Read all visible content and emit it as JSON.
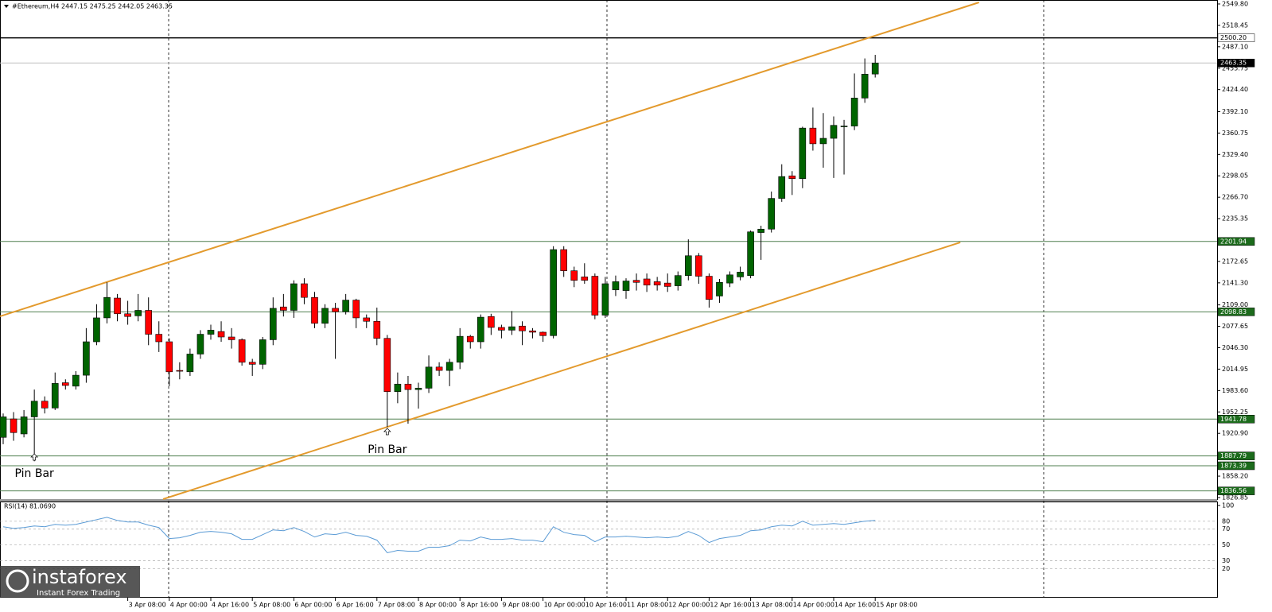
{
  "chart_data": [
    {
      "type": "candlestick",
      "title": "#Ethereum,H4  2447.15 2475.25 2442.05 2463.35",
      "up_color": "#006400",
      "down_color": "#ff0000",
      "open": [
        1915,
        1942,
        1920,
        1945,
        1968,
        1958,
        1995,
        1990,
        2006,
        2055,
        2090,
        2119,
        2096,
        2093,
        2101,
        2066,
        2055,
        2013,
        2011,
        2037,
        2066,
        2070,
        2062,
        2058,
        2025,
        2022,
        2058,
        2106,
        2101,
        2140,
        2120,
        2082,
        2104,
        2099,
        2116,
        2090,
        2085,
        2060,
        1982,
        1993,
        1985,
        1987,
        2018,
        2013,
        2025,
        2063,
        2055,
        2092,
        2076,
        2072,
        2078,
        2071,
        2069,
        2064,
        2190,
        2159,
        2150,
        2151,
        2094,
        2131,
        2130,
        2145,
        2147,
        2143,
        2141,
        2137,
        2152,
        2181,
        2151,
        2122,
        2141,
        2150,
        2152,
        2215,
        2220,
        2265,
        2298,
        2294,
        2368,
        2345,
        2353,
        2370,
        2371,
        2412,
        2447.15
      ],
      "high": [
        1950,
        1952,
        1955,
        1985,
        1975,
        2010,
        2000,
        2012,
        2075,
        2110,
        2142,
        2125,
        2115,
        2125,
        2120,
        2085,
        2060,
        2025,
        2045,
        2072,
        2080,
        2085,
        2075,
        2060,
        2030,
        2062,
        2120,
        2125,
        2145,
        2148,
        2128,
        2110,
        2112,
        2125,
        2118,
        2095,
        2105,
        2065,
        2010,
        2005,
        1995,
        2035,
        2025,
        2030,
        2075,
        2065,
        2095,
        2096,
        2080,
        2100,
        2085,
        2075,
        2070,
        2195,
        2195,
        2165,
        2170,
        2155,
        2150,
        2152,
        2148,
        2155,
        2155,
        2150,
        2155,
        2158,
        2205,
        2185,
        2155,
        2147,
        2158,
        2165,
        2218,
        2225,
        2275,
        2315,
        2305,
        2370,
        2398,
        2390,
        2385,
        2380,
        2448,
        2470,
        2475.25
      ],
      "low": [
        1905,
        1910,
        1915,
        1880,
        1950,
        1955,
        1985,
        1985,
        1995,
        2050,
        2082,
        2085,
        2080,
        2085,
        2050,
        2040,
        1990,
        2000,
        2005,
        2030,
        2058,
        2055,
        2045,
        2020,
        2005,
        2015,
        2050,
        2092,
        2090,
        2110,
        2075,
        2075,
        2030,
        2095,
        2075,
        2075,
        2050,
        1930,
        1965,
        1935,
        1957,
        1980,
        2005,
        1990,
        2015,
        2045,
        2045,
        2065,
        2060,
        2065,
        2050,
        2060,
        2055,
        2060,
        2150,
        2135,
        2140,
        2088,
        2090,
        2122,
        2118,
        2130,
        2128,
        2130,
        2128,
        2130,
        2145,
        2140,
        2105,
        2112,
        2135,
        2145,
        2148,
        2175,
        2215,
        2260,
        2270,
        2280,
        2335,
        2310,
        2295,
        2300,
        2365,
        2405,
        2442.05
      ],
      "close": [
        1945,
        1922,
        1945,
        1968,
        1958,
        1994,
        1991,
        2006,
        2055,
        2090,
        2120,
        2096,
        2092,
        2101,
        2066,
        2055,
        2011,
        2012,
        2037,
        2066,
        2072,
        2062,
        2058,
        2025,
        2022,
        2058,
        2104,
        2101,
        2140,
        2120,
        2082,
        2104,
        2099,
        2116,
        2090,
        2085,
        2060,
        1982,
        1993,
        1985,
        1987,
        2018,
        2013,
        2025,
        2063,
        2055,
        2091,
        2076,
        2072,
        2077,
        2071,
        2069,
        2064,
        2190,
        2159,
        2145,
        2145,
        2094,
        2140,
        2143,
        2144,
        2142,
        2138,
        2138,
        2136,
        2152,
        2181,
        2151,
        2117,
        2142,
        2153,
        2157,
        2216,
        2220,
        2265,
        2297,
        2294,
        2368,
        2345,
        2353,
        2372,
        2371,
        2412,
        2447,
        2463.35
      ],
      "ylim": [
        1824.5,
        2555.6
      ],
      "yticks": [
        {
          "value": 2549.8,
          "label": "2549.80"
        },
        {
          "value": 2518.45,
          "label": "2518.45"
        },
        {
          "value": 2487.1,
          "label": "2487.10"
        },
        {
          "value": 2455.75,
          "label": "2455.75"
        },
        {
          "value": 2424.4,
          "label": "2424.40"
        },
        {
          "value": 2392.1,
          "label": "2392.10"
        },
        {
          "value": 2360.75,
          "label": "2360.75"
        },
        {
          "value": 2329.4,
          "label": "2329.40"
        },
        {
          "value": 2298.05,
          "label": "2298.05"
        },
        {
          "value": 2266.7,
          "label": "2266.70"
        },
        {
          "value": 2235.35,
          "label": "2235.35"
        },
        {
          "value": 2172.65,
          "label": "2172.65"
        },
        {
          "value": 2141.3,
          "label": "2141.30"
        },
        {
          "value": 2109,
          "label": "2109.00"
        },
        {
          "value": 2077.65,
          "label": "2077.65"
        },
        {
          "value": 2046.3,
          "label": "2046.30"
        },
        {
          "value": 2014.95,
          "label": "2014.95"
        },
        {
          "value": 1983.6,
          "label": "1983.60"
        },
        {
          "value": 1952.25,
          "label": "1952.25"
        },
        {
          "value": 1920.9,
          "label": "1920.90"
        },
        {
          "value": 1858.2,
          "label": "1858.20"
        },
        {
          "value": 1826.85,
          "label": "1826.85"
        }
      ],
      "xticks": [
        {
          "value": 12,
          "label": "3 Apr 08:00"
        },
        {
          "value": 16,
          "label": "4 Apr 00:00"
        },
        {
          "value": 20,
          "label": "4 Apr 16:00"
        },
        {
          "value": 24,
          "label": "5 Apr 08:00"
        },
        {
          "value": 28,
          "label": "6 Apr 00:00"
        },
        {
          "value": 32,
          "label": "6 Apr 16:00"
        },
        {
          "value": 36,
          "label": "7 Apr 08:00"
        },
        {
          "value": 40,
          "label": "8 Apr 00:00"
        },
        {
          "value": 44,
          "label": "8 Apr 16:00"
        },
        {
          "value": 48,
          "label": "9 Apr 08:00"
        },
        {
          "value": 52,
          "label": "10 Apr 00:00"
        },
        {
          "value": 56,
          "label": "10 Apr 16:00"
        },
        {
          "value": 60,
          "label": "11 Apr 08:00"
        },
        {
          "value": 64,
          "label": "12 Apr 00:00"
        },
        {
          "value": 68,
          "label": "12 Apr 16:00"
        },
        {
          "value": 72,
          "label": "13 Apr 08:00"
        },
        {
          "value": 76,
          "label": "14 Apr 00:00"
        },
        {
          "value": 80,
          "label": "14 Apr 16:00"
        },
        {
          "value": 84,
          "label": "15 Apr 08:00"
        }
      ],
      "levels": [
        {
          "value": 2500.2,
          "label": "2500.20",
          "color": "#000000",
          "box": "#ffffff"
        },
        {
          "value": 2463.35,
          "label": "2463.35",
          "color": "#c0c0c0",
          "box": "#000000"
        },
        {
          "value": 2201.94,
          "label": "2201.94",
          "color": "#4f7f4f",
          "box": "#1c6b1c"
        },
        {
          "value": 2098.83,
          "label": "2098.83",
          "color": "#4f7f4f",
          "box": "#1c6b1c"
        },
        {
          "value": 1941.78,
          "label": "1941.78",
          "color": "#4f7f4f",
          "box": "#1c6b1c"
        },
        {
          "value": 1887.79,
          "label": "1887.79",
          "color": "#4f7f4f",
          "box": "#1c6b1c"
        },
        {
          "value": 1873.39,
          "label": "1873.39",
          "color": "#4f7f4f",
          "box": "#1c6b1c"
        },
        {
          "value": 1836.56,
          "label": "1836.56",
          "color": "#4f7f4f",
          "box": "#1c6b1c"
        }
      ],
      "channel": {
        "color": "#e39a2d",
        "lines": [
          {
            "x": [
              -0.3,
              94
            ],
            "y": [
              2092.3,
              2552.1
            ]
          },
          {
            "x": [
              15.4,
              92.2
            ],
            "y": [
              1824.5,
              2200.6
            ]
          }
        ]
      },
      "annotations": [
        "Pin Bar",
        "Pin Bar"
      ]
    },
    {
      "type": "line",
      "title": "RSI(14) 81.0690",
      "color": "#5b9bd5",
      "values": [
        73,
        71,
        72,
        74,
        73,
        76,
        75,
        76,
        79,
        82,
        85,
        81,
        79,
        79,
        75,
        72,
        58,
        59,
        62,
        66,
        67,
        66,
        64,
        57,
        57,
        63,
        69,
        68,
        72,
        67,
        60,
        64,
        63,
        66,
        62,
        61,
        56,
        40,
        43,
        42,
        42,
        47,
        47,
        49,
        56,
        55,
        60,
        57,
        57,
        58,
        56,
        56,
        54,
        73,
        66,
        63,
        62,
        54,
        60,
        60,
        61,
        60,
        59,
        60,
        59,
        61,
        67,
        62,
        53,
        58,
        60,
        62,
        68,
        69,
        73,
        75,
        74,
        80,
        75,
        76,
        77,
        76,
        78,
        80,
        81.069
      ],
      "ylim": [
        -17,
        105
      ],
      "yticks": [
        100,
        80,
        70,
        50,
        30,
        20
      ]
    },
    {
      "brand": "instaforex",
      "tagline": "Instant Forex Trading"
    }
  ]
}
